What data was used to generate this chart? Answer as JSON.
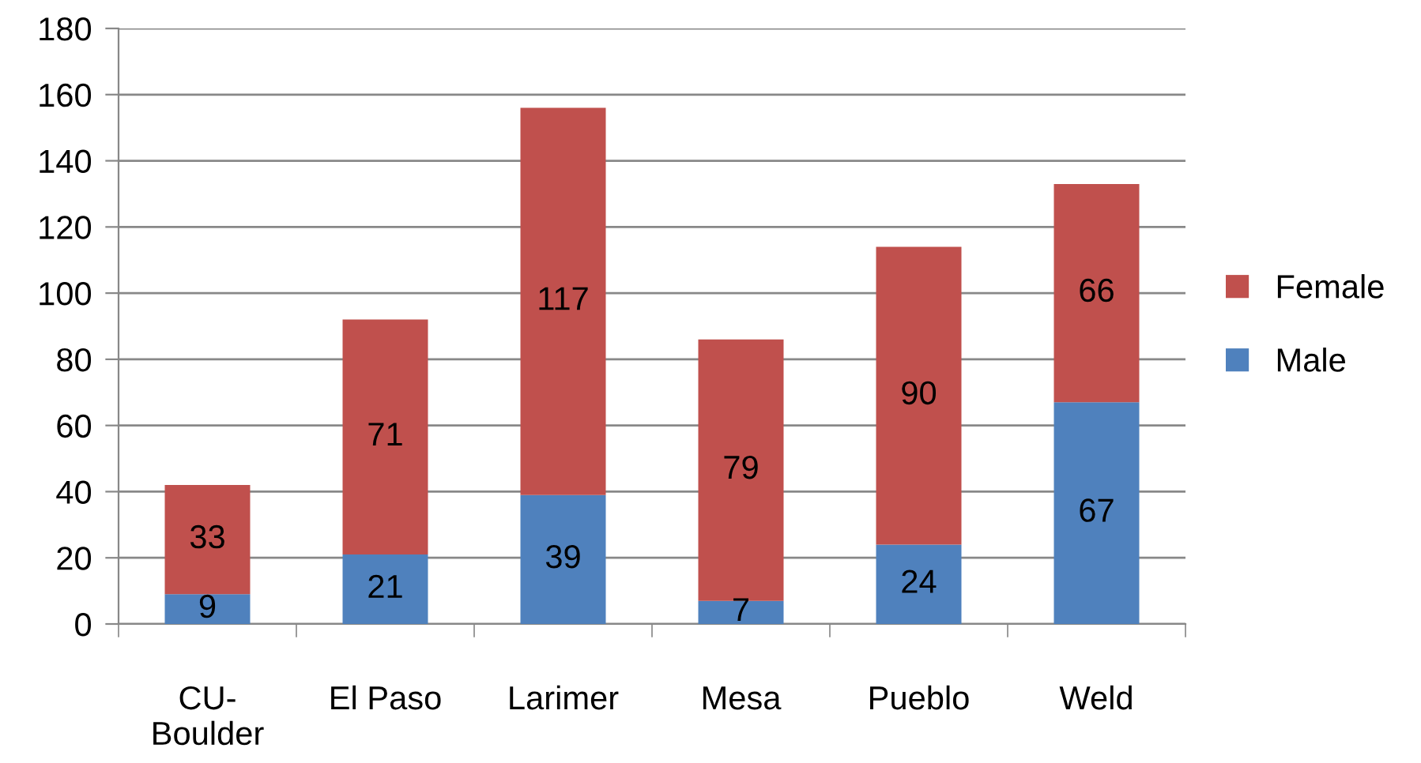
{
  "chart_data": {
    "type": "bar",
    "stacked": true,
    "categories": [
      "CU-Boulder",
      "El Paso",
      "Larimer",
      "Mesa",
      "Pueblo",
      "Weld"
    ],
    "series": [
      {
        "name": "Male",
        "color": "#4f81bd",
        "values": [
          9,
          21,
          39,
          7,
          24,
          67
        ]
      },
      {
        "name": "Female",
        "color": "#c0504d",
        "values": [
          33,
          71,
          117,
          79,
          90,
          66
        ]
      }
    ],
    "ylim": [
      0,
      180
    ],
    "yticks": [
      0,
      20,
      40,
      60,
      80,
      100,
      120,
      140,
      160,
      180
    ],
    "grid": "y",
    "legend": "right",
    "data_labels": true
  }
}
